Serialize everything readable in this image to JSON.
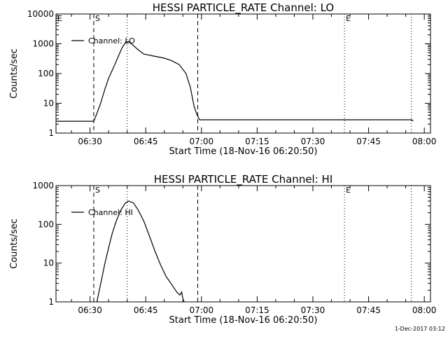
{
  "footer": {
    "timestamp": "1-Dec-2017 03:12"
  },
  "chart_data": [
    {
      "type": "line",
      "title": "HESSI PARTICLE_RATE Channel: LO",
      "xlabel": "Start Time (18-Nov-16 06:20:50)",
      "ylabel": "Counts/sec",
      "yscale": "log",
      "xlim": [
        "06:20:50",
        "08:01:40"
      ],
      "ylim": [
        1,
        10000
      ],
      "xticks": [
        "06:30",
        "06:45",
        "07:00",
        "07:15",
        "07:30",
        "07:45",
        "08:00"
      ],
      "yticks": [
        {
          "value": 1,
          "label": "1"
        },
        {
          "value": 10,
          "label": "10"
        },
        {
          "value": 100,
          "label": "100"
        },
        {
          "value": 1000,
          "label": "1000"
        },
        {
          "value": 10000,
          "label": "10000"
        }
      ],
      "legend": {
        "label": "Channel: LO",
        "placement": "top-left"
      },
      "markers": [
        {
          "time": "06:20:50",
          "label": "E",
          "style": "dotted"
        },
        {
          "time": "06:31:00",
          "label": "S",
          "style": "dashed"
        },
        {
          "time": "06:40:00",
          "label": "",
          "style": "dotted"
        },
        {
          "time": "06:59:00",
          "label": "",
          "style": "dashed"
        },
        {
          "time": "07:38:30",
          "label": "E",
          "style": "dotted"
        },
        {
          "time": "07:56:30",
          "label": "",
          "style": "dotted"
        }
      ],
      "series": [
        {
          "name": "Channel: LO",
          "points": [
            [
              "06:20:50",
              2.5
            ],
            [
              "06:31:00",
              2.5
            ],
            [
              "06:31:40",
              4
            ],
            [
              "06:32:50",
              10
            ],
            [
              "06:34:00",
              30
            ],
            [
              "06:35:00",
              70
            ],
            [
              "06:36:20",
              160
            ],
            [
              "06:37:30",
              350
            ],
            [
              "06:38:40",
              750
            ],
            [
              "06:39:40",
              1150
            ],
            [
              "06:40:20",
              1200
            ],
            [
              "06:41:20",
              950
            ],
            [
              "06:42:50",
              650
            ],
            [
              "06:44:30",
              450
            ],
            [
              "06:47:00",
              390
            ],
            [
              "06:50:00",
              330
            ],
            [
              "06:52:00",
              270
            ],
            [
              "06:54:00",
              200
            ],
            [
              "06:55:50",
              100
            ],
            [
              "06:57:00",
              35
            ],
            [
              "06:58:00",
              8
            ],
            [
              "06:58:50",
              4
            ],
            [
              "06:59:30",
              2.8
            ],
            [
              "07:56:40",
              2.8
            ],
            [
              "07:57:00",
              2.5
            ]
          ]
        }
      ]
    },
    {
      "type": "line",
      "title": "HESSI PARTICLE_RATE Channel: HI",
      "xlabel": "Start Time (18-Nov-16 06:20:50)",
      "ylabel": "Counts/sec",
      "yscale": "log",
      "xlim": [
        "06:20:50",
        "08:01:40"
      ],
      "ylim": [
        1,
        1000
      ],
      "xticks": [
        "06:30",
        "06:45",
        "07:00",
        "07:15",
        "07:30",
        "07:45",
        "08:00"
      ],
      "yticks": [
        {
          "value": 1,
          "label": "1"
        },
        {
          "value": 10,
          "label": "10"
        },
        {
          "value": 100,
          "label": "100"
        },
        {
          "value": 1000,
          "label": "1000"
        }
      ],
      "legend": {
        "label": "Channel: HI",
        "placement": "top-left"
      },
      "markers": [
        {
          "time": "06:20:50",
          "label": "",
          "style": "dotted"
        },
        {
          "time": "06:31:00",
          "label": "S",
          "style": "dashed"
        },
        {
          "time": "06:40:00",
          "label": "",
          "style": "dotted"
        },
        {
          "time": "06:59:00",
          "label": "",
          "style": "dashed"
        },
        {
          "time": "07:38:30",
          "label": "E",
          "style": "dotted"
        },
        {
          "time": "07:56:30",
          "label": "",
          "style": "dotted"
        }
      ],
      "series": [
        {
          "name": "Channel: HI",
          "points": [
            [
              "06:31:50",
              1
            ],
            [
              "06:32:30",
              2
            ],
            [
              "06:33:10",
              4
            ],
            [
              "06:34:00",
              10
            ],
            [
              "06:35:00",
              25
            ],
            [
              "06:36:00",
              60
            ],
            [
              "06:37:10",
              130
            ],
            [
              "06:38:20",
              240
            ],
            [
              "06:39:30",
              350
            ],
            [
              "06:40:20",
              400
            ],
            [
              "06:41:40",
              360
            ],
            [
              "06:43:00",
              230
            ],
            [
              "06:44:30",
              120
            ],
            [
              "06:46:00",
              50
            ],
            [
              "06:47:30",
              20
            ],
            [
              "06:49:00",
              9
            ],
            [
              "06:50:30",
              4.5
            ],
            [
              "06:52:00",
              2.8
            ],
            [
              "06:53:20",
              1.8
            ],
            [
              "06:54:10",
              1.5
            ],
            [
              "06:54:40",
              1.8
            ],
            [
              "06:55:00",
              1.2
            ],
            [
              "06:55:20",
              1
            ]
          ]
        }
      ]
    }
  ]
}
